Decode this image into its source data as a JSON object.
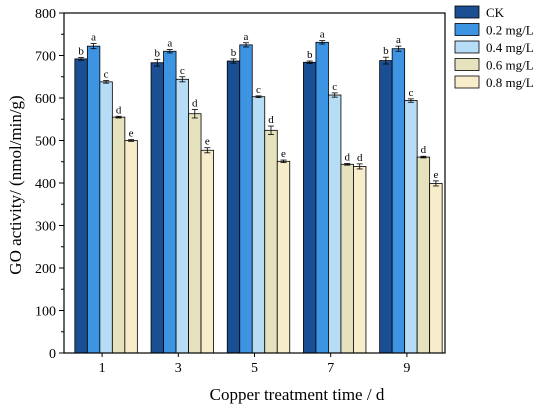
{
  "chart_data": {
    "type": "bar",
    "xlabel": "Copper treatment time / d",
    "ylabel": "GO activity/ (nmol/min/g)",
    "ylim": [
      0,
      800
    ],
    "yticks": [
      0,
      100,
      200,
      300,
      400,
      500,
      600,
      700,
      800
    ],
    "categories": [
      "1",
      "3",
      "5",
      "7",
      "9"
    ],
    "legend_position": "top-right",
    "series": [
      {
        "name": "CK",
        "color": "#1b4f93",
        "values": [
          692,
          683,
          687,
          684,
          688
        ],
        "errors": [
          3,
          8,
          5,
          3,
          8
        ],
        "labels": [
          "b",
          "b",
          "b",
          "b",
          "b"
        ]
      },
      {
        "name": "0.2 mg/L",
        "color": "#3d94e2",
        "values": [
          722,
          710,
          725,
          731,
          716
        ],
        "errors": [
          6,
          4,
          5,
          4,
          6
        ],
        "labels": [
          "a",
          "a",
          "a",
          "a",
          "a"
        ]
      },
      {
        "name": "0.4 mg/L",
        "color": "#b7dcf6",
        "values": [
          638,
          644,
          603,
          607,
          594
        ],
        "errors": [
          3,
          6,
          2,
          5,
          4
        ],
        "labels": [
          "c",
          "c",
          "c",
          "c",
          "c"
        ]
      },
      {
        "name": "0.6 mg/L",
        "color": "#e5e2bd",
        "values": [
          555,
          563,
          524,
          444,
          461
        ],
        "errors": [
          2,
          10,
          10,
          2,
          2
        ],
        "labels": [
          "d",
          "d",
          "d",
          "d",
          "d"
        ]
      },
      {
        "name": "0.8 mg/L",
        "color": "#f8edcb",
        "values": [
          500,
          477,
          451,
          439,
          399
        ],
        "errors": [
          2,
          6,
          3,
          6,
          6
        ],
        "labels": [
          "e",
          "e",
          "e",
          "d",
          "e"
        ]
      }
    ]
  }
}
